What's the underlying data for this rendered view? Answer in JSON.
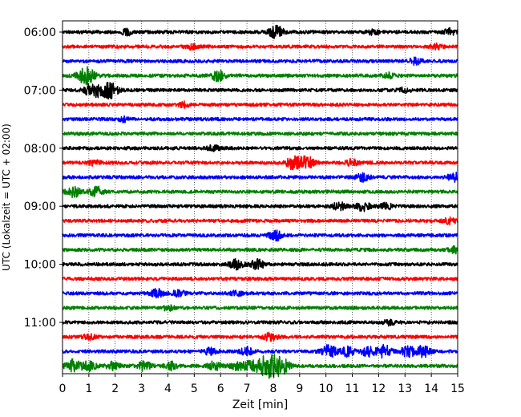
{
  "chart_data": {
    "type": "line",
    "title": "",
    "xlabel": "Zeit  [min]",
    "ylabel": "UTC (Lokalzeit = UTC + 02:00)",
    "xlim": [
      0,
      15
    ],
    "x_ticks": [
      0,
      1,
      2,
      3,
      4,
      5,
      6,
      7,
      8,
      9,
      10,
      11,
      12,
      13,
      14,
      15
    ],
    "x_tick_labels": [
      "0",
      "1",
      "2",
      "3",
      "4",
      "5",
      "6",
      "7",
      "8",
      "9",
      "10",
      "11",
      "12",
      "13",
      "14",
      "15"
    ],
    "y_tick_labels": [
      "06:00",
      "07:00",
      "08:00",
      "09:00",
      "10:00",
      "11:00"
    ],
    "y_tick_rows": [
      0,
      4,
      8,
      12,
      16,
      20
    ],
    "minutes_per_row": 15,
    "row_count": 24,
    "color_cycle": [
      "#000000",
      "#ff0000",
      "#0000ff",
      "#008000"
    ],
    "vertical_grid": "dotted",
    "rows": [
      {
        "start": "06:00",
        "color": "#000000",
        "events": [
          {
            "t": 2.5,
            "amp": 0.4
          },
          {
            "t": 8.1,
            "amp": 0.8
          },
          {
            "t": 11.8,
            "amp": 0.3
          },
          {
            "t": 14.7,
            "amp": 0.4
          }
        ]
      },
      {
        "start": "06:15",
        "color": "#ff0000",
        "events": [
          {
            "t": 4.9,
            "amp": 0.3
          },
          {
            "t": 14.2,
            "amp": 0.3
          }
        ]
      },
      {
        "start": "06:30",
        "color": "#0000ff",
        "events": [
          {
            "t": 13.4,
            "amp": 0.4
          }
        ]
      },
      {
        "start": "06:45",
        "color": "#008000",
        "events": [
          {
            "t": 0.9,
            "amp": 1.1
          },
          {
            "t": 5.9,
            "amp": 0.7
          },
          {
            "t": 12.4,
            "amp": 0.3
          }
        ]
      },
      {
        "start": "07:00",
        "color": "#000000",
        "events": [
          {
            "t": 1.2,
            "amp": 1.1
          },
          {
            "t": 1.8,
            "amp": 1.0
          },
          {
            "t": 13.0,
            "amp": 0.3
          }
        ]
      },
      {
        "start": "07:15",
        "color": "#ff0000",
        "events": [
          {
            "t": 4.6,
            "amp": 0.3
          }
        ]
      },
      {
        "start": "07:30",
        "color": "#0000ff",
        "events": [
          {
            "t": 2.3,
            "amp": 0.3
          }
        ]
      },
      {
        "start": "07:45",
        "color": "#008000",
        "events": []
      },
      {
        "start": "08:00",
        "color": "#000000",
        "events": [
          {
            "t": 5.7,
            "amp": 0.4
          }
        ]
      },
      {
        "start": "08:15",
        "color": "#ff0000",
        "events": [
          {
            "t": 1.2,
            "amp": 0.3
          },
          {
            "t": 8.8,
            "amp": 0.9
          },
          {
            "t": 9.3,
            "amp": 0.7
          },
          {
            "t": 11.0,
            "amp": 0.4
          }
        ]
      },
      {
        "start": "08:30",
        "color": "#0000ff",
        "events": [
          {
            "t": 11.4,
            "amp": 0.5
          },
          {
            "t": 14.9,
            "amp": 0.6
          }
        ]
      },
      {
        "start": "08:45",
        "color": "#008000",
        "events": [
          {
            "t": 0.4,
            "amp": 0.7
          },
          {
            "t": 1.3,
            "amp": 0.6
          }
        ]
      },
      {
        "start": "09:00",
        "color": "#000000",
        "events": [
          {
            "t": 10.5,
            "amp": 0.5
          },
          {
            "t": 11.4,
            "amp": 0.6
          },
          {
            "t": 12.3,
            "amp": 0.4
          }
        ]
      },
      {
        "start": "09:15",
        "color": "#ff0000",
        "events": [
          {
            "t": 14.7,
            "amp": 0.4
          }
        ]
      },
      {
        "start": "09:30",
        "color": "#0000ff",
        "events": [
          {
            "t": 8.1,
            "amp": 0.6
          }
        ]
      },
      {
        "start": "09:45",
        "color": "#008000",
        "events": [
          {
            "t": 14.9,
            "amp": 0.4
          }
        ]
      },
      {
        "start": "10:00",
        "color": "#000000",
        "events": [
          {
            "t": 6.6,
            "amp": 0.6
          },
          {
            "t": 7.4,
            "amp": 0.6
          }
        ]
      },
      {
        "start": "10:15",
        "color": "#ff0000",
        "events": []
      },
      {
        "start": "10:30",
        "color": "#0000ff",
        "events": [
          {
            "t": 3.6,
            "amp": 0.5
          },
          {
            "t": 4.4,
            "amp": 0.4
          },
          {
            "t": 6.6,
            "amp": 0.3
          }
        ]
      },
      {
        "start": "10:45",
        "color": "#008000",
        "events": [
          {
            "t": 4.0,
            "amp": 0.3
          }
        ]
      },
      {
        "start": "11:00",
        "color": "#000000",
        "events": [
          {
            "t": 12.4,
            "amp": 0.3
          }
        ]
      },
      {
        "start": "11:15",
        "color": "#ff0000",
        "events": [
          {
            "t": 1.0,
            "amp": 0.3
          },
          {
            "t": 7.9,
            "amp": 0.5
          }
        ]
      },
      {
        "start": "11:30",
        "color": "#0000ff",
        "events": [
          {
            "t": 5.6,
            "amp": 0.4
          },
          {
            "t": 7.0,
            "amp": 0.5
          },
          {
            "t": 10.1,
            "amp": 0.8
          },
          {
            "t": 10.8,
            "amp": 0.6
          },
          {
            "t": 11.6,
            "amp": 0.6
          },
          {
            "t": 12.2,
            "amp": 0.8
          },
          {
            "t": 13.1,
            "amp": 0.7
          },
          {
            "t": 13.7,
            "amp": 0.7
          }
        ]
      },
      {
        "start": "11:45",
        "color": "#008000",
        "events": [
          {
            "t": 0.4,
            "amp": 0.8
          },
          {
            "t": 1.0,
            "amp": 0.6
          },
          {
            "t": 1.9,
            "amp": 0.5
          },
          {
            "t": 3.1,
            "amp": 0.6
          },
          {
            "t": 4.1,
            "amp": 0.5
          },
          {
            "t": 5.8,
            "amp": 0.6
          },
          {
            "t": 6.7,
            "amp": 0.7
          },
          {
            "t": 7.2,
            "amp": 0.6
          },
          {
            "t": 7.8,
            "amp": 1.5
          },
          {
            "t": 8.3,
            "amp": 1.0
          }
        ]
      }
    ]
  }
}
